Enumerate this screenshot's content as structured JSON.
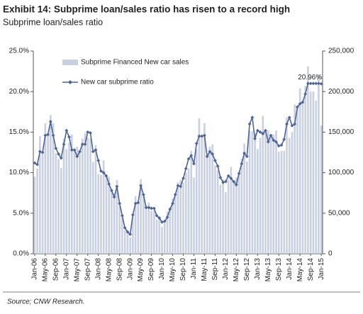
{
  "chart_data": {
    "type": "bar-line",
    "title": "Exhibit 14: Subprime loan/sales ratio has risen to a record high",
    "subtitle": "Subprime loan/sales ratio",
    "source": "Source; CNW Research.",
    "annotations": [
      {
        "text": "20.96%"
      }
    ],
    "categories": [
      "Jan-06",
      null,
      null,
      null,
      "May-06",
      null,
      null,
      null,
      "Sep-06",
      null,
      null,
      null,
      "Jan-07",
      null,
      null,
      null,
      "May-07",
      null,
      null,
      null,
      "Sep-07",
      null,
      null,
      null,
      "Jan-08",
      null,
      null,
      null,
      "May-08",
      null,
      null,
      null,
      "Sep-08",
      null,
      null,
      null,
      "Jan-09",
      null,
      null,
      null,
      "May-09",
      null,
      null,
      null,
      "Sep-09",
      null,
      null,
      null,
      "Jan-10",
      null,
      null,
      null,
      "May-10",
      null,
      null,
      null,
      "Sep-10",
      null,
      null,
      null,
      "Jan-11",
      null,
      null,
      null,
      "May-11",
      null,
      null,
      null,
      "Sep-11",
      null,
      null,
      null,
      "Jan-12",
      null,
      null,
      null,
      "May-12",
      null,
      null,
      null,
      "Sep-12",
      null,
      null,
      null,
      "Jan-13",
      null,
      null,
      null,
      "May-13",
      null,
      null,
      null,
      "Sep-13",
      null,
      null,
      null,
      "Jan-14",
      null,
      null,
      null,
      "May-14",
      null,
      null,
      null,
      "Sep-14",
      null,
      null,
      null,
      "Jan-15"
    ],
    "series": [
      {
        "name": "Subprime Financed New car sales",
        "color": "#c9d0e2",
        "axis": "y2",
        "type": "bar",
        "values": [
          95000,
          105000,
          145000,
          125000,
          161000,
          147000,
          171000,
          161000,
          124000,
          117000,
          106000,
          142000,
          129000,
          137000,
          147000,
          128000,
          132000,
          126000,
          142000,
          149000,
          143000,
          142000,
          113000,
          134000,
          98000,
          97000,
          115000,
          96000,
          95000,
          78000,
          74000,
          91000,
          59000,
          45000,
          29000,
          28000,
          20000,
          46000,
          71000,
          63000,
          92000,
          73000,
          60000,
          63000,
          53000,
          53000,
          42000,
          46000,
          33000,
          38000,
          52000,
          55000,
          68000,
          73000,
          88000,
          91000,
          88000,
          100000,
          105000,
          127000,
          94000,
          129000,
          167000,
          145000,
          161000,
          120000,
          132000,
          135000,
          109000,
          103000,
          85000,
          92000,
          76000,
          91000,
          107000,
          89000,
          94000,
          99000,
          117000,
          136000,
          114000,
          152000,
          151000,
          149000,
          129000,
          143000,
          170000,
          152000,
          152000,
          146000,
          147000,
          152000,
          126000,
          127000,
          127000,
          168000,
          143000,
          150000,
          184000,
          181000,
          204000,
          187000,
          207000,
          231000,
          200000,
          200000,
          189000,
          221000,
          158000
        ]
      },
      {
        "name": "New car subprime ratio",
        "color": "#4c6496",
        "type": "line",
        "values": [
          11.2,
          11.0,
          12.6,
          12.5,
          14.6,
          14.7,
          16.3,
          14.6,
          13.0,
          12.3,
          11.8,
          13.5,
          15.2,
          14.4,
          12.8,
          12.8,
          12.0,
          12.6,
          13.5,
          13.5,
          15.0,
          14.9,
          12.6,
          12.8,
          11.5,
          10.2,
          10.0,
          9.6,
          8.6,
          7.8,
          7.0,
          8.3,
          6.2,
          4.7,
          3.2,
          2.7,
          2.4,
          4.8,
          6.2,
          6.3,
          8.4,
          7.3,
          5.7,
          5.7,
          5.6,
          5.6,
          4.7,
          4.4,
          3.9,
          4.0,
          4.5,
          5.5,
          6.2,
          7.3,
          8.4,
          8.3,
          9.3,
          10.5,
          11.7,
          12.1,
          11.1,
          13.6,
          14.5,
          14.5,
          14.6,
          12.0,
          12.6,
          12.3,
          11.5,
          10.8,
          9.4,
          8.8,
          8.9,
          9.6,
          9.3,
          8.9,
          8.5,
          9.9,
          11.1,
          12.4,
          12.0,
          16.0,
          16.8,
          14.2,
          15.2,
          15.0,
          14.8,
          15.2,
          13.8,
          14.6,
          14.0,
          13.8,
          13.3,
          13.4,
          14.1,
          16.0,
          16.8,
          15.8,
          16.0,
          18.1,
          18.5,
          18.7,
          19.7,
          21.0,
          21.0,
          21.0,
          21.0,
          21.0,
          20.96
        ]
      }
    ],
    "ylim": [
      0,
      25
    ],
    "yticks": [
      {
        "value": 0,
        "label": "0.0%"
      },
      {
        "value": 5,
        "label": "5.0%"
      },
      {
        "value": 10,
        "label": "10.0%"
      },
      {
        "value": 15,
        "label": "15.0%"
      },
      {
        "value": 20,
        "label": "20.0%"
      },
      {
        "value": 25,
        "label": "25.0%"
      }
    ],
    "y2lim": [
      0,
      250000
    ],
    "y2ticks": [
      0,
      {
        "value": 50000,
        "label": "50,000"
      },
      {
        "value": 100000,
        "label": "100,000"
      },
      {
        "value": 150000,
        "label": "150,000"
      },
      {
        "value": 200000,
        "label": "200,000"
      },
      {
        "value": 250000,
        "label": "250,000"
      }
    ],
    "grid": false,
    "legend": "upper-left"
  }
}
